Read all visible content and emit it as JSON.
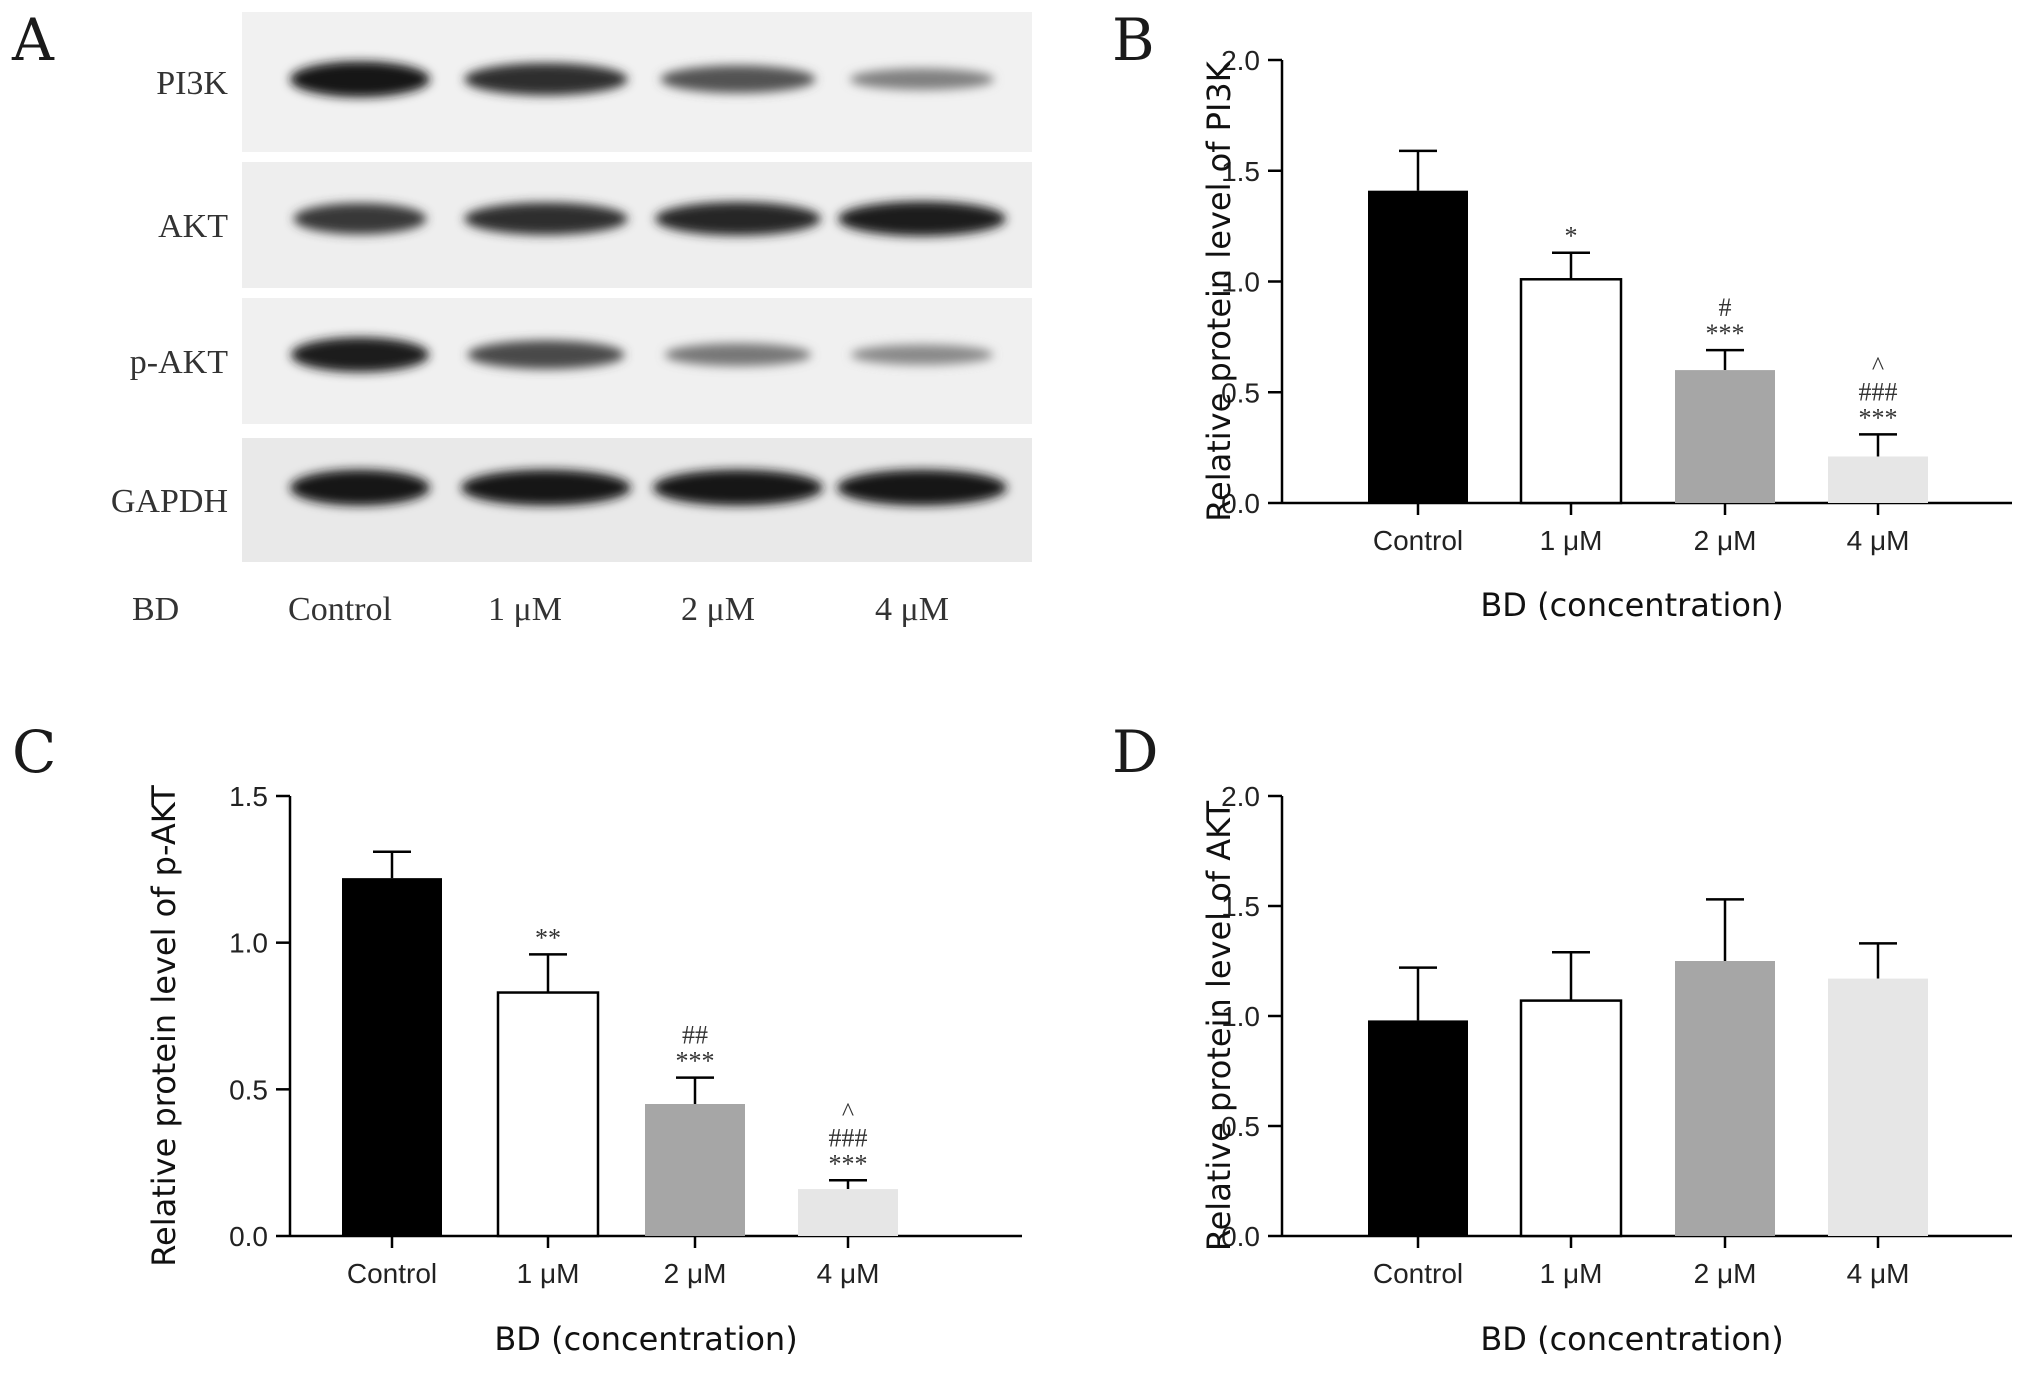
{
  "panels": {
    "a": "A",
    "b": "B",
    "c": "C",
    "d": "D"
  },
  "blot": {
    "proteins": [
      "PI3K",
      "AKT",
      "p-AKT",
      "GAPDH"
    ],
    "row_label": "BD",
    "lanes": [
      "Control",
      "1 μM",
      "2 μM",
      "4 μM"
    ],
    "band_intensity": {
      "PI3K": [
        1.0,
        0.85,
        0.65,
        0.4
      ],
      "AKT": [
        0.8,
        0.85,
        0.9,
        0.95
      ],
      "p-AKT": [
        0.95,
        0.7,
        0.45,
        0.35
      ],
      "GAPDH": [
        1.0,
        1.0,
        1.0,
        1.0
      ]
    }
  },
  "chart_data": [
    {
      "panel": "B",
      "type": "bar",
      "categories": [
        "Control",
        "1 μM",
        "2 μM",
        "4 μM"
      ],
      "values": [
        1.41,
        1.01,
        0.6,
        0.21
      ],
      "errors": [
        0.18,
        0.12,
        0.09,
        0.1
      ],
      "significance": [
        [],
        [
          "*"
        ],
        [
          "#",
          "***"
        ],
        [
          "^",
          "###",
          "***"
        ]
      ],
      "colors": [
        "#000000",
        "#ffffff",
        "#a6a6a6",
        "#e6e6e6"
      ],
      "xlabel": "BD (concentration)",
      "ylabel": "Relative protein level of PI3K",
      "ylim": [
        0,
        2.0
      ],
      "yticks": [
        "0.0",
        "0.5",
        "1.0",
        "1.5",
        "2.0"
      ]
    },
    {
      "panel": "C",
      "type": "bar",
      "categories": [
        "Control",
        "1 μM",
        "2 μM",
        "4 μM"
      ],
      "values": [
        1.22,
        0.83,
        0.45,
        0.16
      ],
      "errors": [
        0.09,
        0.13,
        0.09,
        0.03
      ],
      "significance": [
        [],
        [
          "**"
        ],
        [
          "##",
          "***"
        ],
        [
          "^",
          "###",
          "***"
        ]
      ],
      "colors": [
        "#000000",
        "#ffffff",
        "#a6a6a6",
        "#e6e6e6"
      ],
      "xlabel": "BD (concentration)",
      "ylabel": "Relative protein level of p-AKT",
      "ylim": [
        0,
        1.5
      ],
      "yticks": [
        "0.0",
        "0.5",
        "1.0",
        "1.5"
      ]
    },
    {
      "panel": "D",
      "type": "bar",
      "categories": [
        "Control",
        "1 μM",
        "2 μM",
        "4 μM"
      ],
      "values": [
        0.98,
        1.07,
        1.25,
        1.17
      ],
      "errors": [
        0.24,
        0.22,
        0.28,
        0.16
      ],
      "significance": [
        [],
        [],
        [],
        []
      ],
      "colors": [
        "#000000",
        "#ffffff",
        "#a6a6a6",
        "#e6e6e6"
      ],
      "xlabel": "BD (concentration)",
      "ylabel": "Relative protein level of AKT",
      "ylim": [
        0,
        2.0
      ],
      "yticks": [
        "0.0",
        "0.5",
        "1.0",
        "1.5",
        "2.0"
      ]
    }
  ]
}
